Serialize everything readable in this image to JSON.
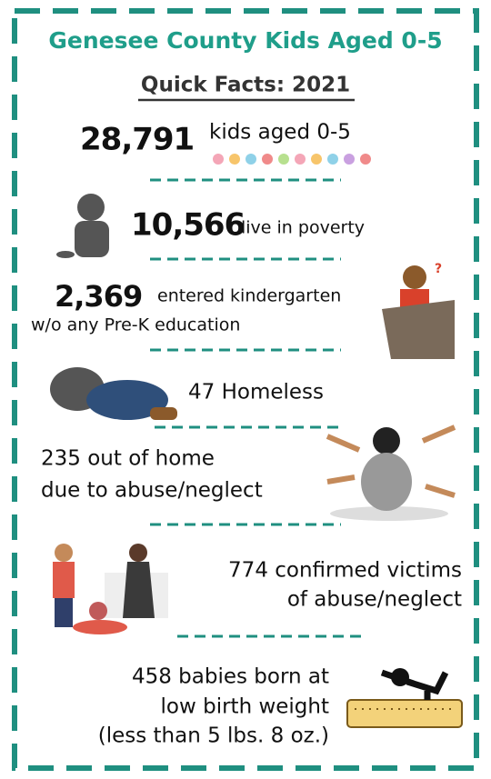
{
  "header": {
    "title": "Genesee County Kids Aged 0-5",
    "subtitle": "Quick Facts: 2021"
  },
  "facts": [
    {
      "number": "28,791",
      "lines": [
        "kids aged 0-5"
      ]
    },
    {
      "number": "10,566",
      "lines": [
        "live in poverty"
      ]
    },
    {
      "number": "2,369",
      "lines": [
        "entered kindergarten",
        "w/o any Pre-K education"
      ]
    },
    {
      "lines": [
        "47 Homeless"
      ]
    },
    {
      "lines": [
        "235 out of home",
        "due to abuse/neglect"
      ]
    },
    {
      "lines": [
        "774 confirmed victims",
        "of abuse/neglect"
      ]
    },
    {
      "lines": [
        "458 babies born at",
        "low birth weight",
        "(less than 5 lbs. 8 oz.)"
      ]
    }
  ]
}
